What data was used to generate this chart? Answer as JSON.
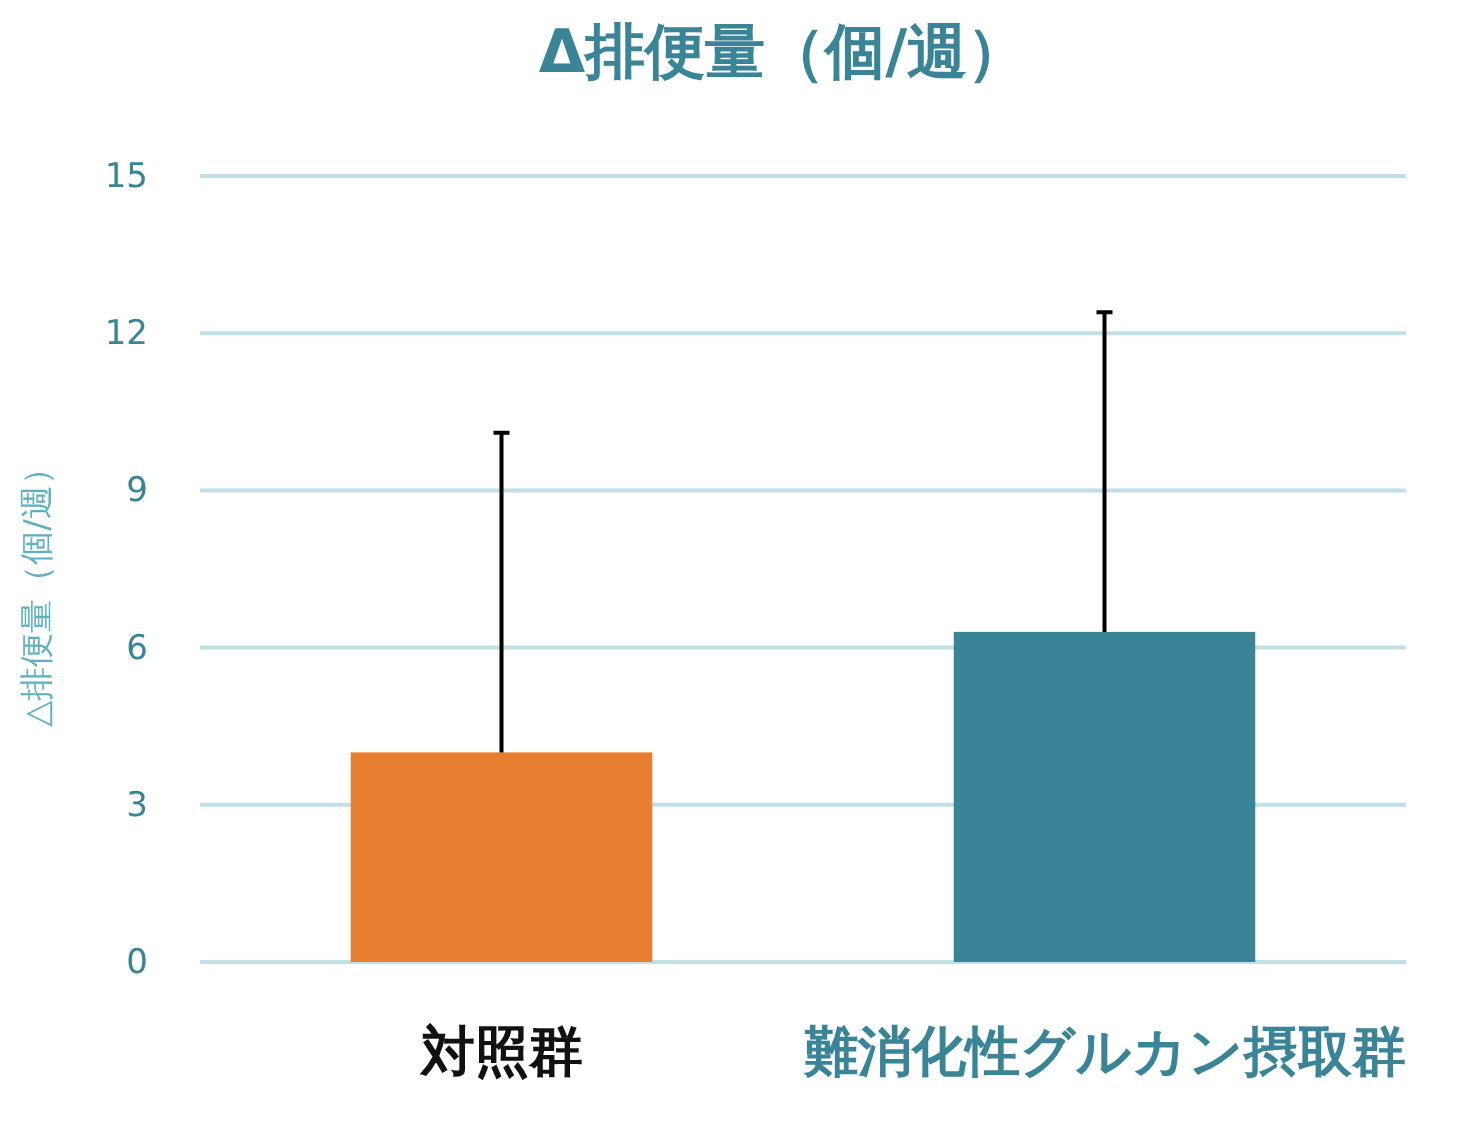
{
  "chart_data": {
    "type": "bar",
    "title": "Δ排便量（個/週）",
    "ylabel": "△排便量（個/週）",
    "categories": [
      "対照群",
      "難消化性グルカン摂取群"
    ],
    "values": [
      4.0,
      6.3
    ],
    "colors": [
      "#e87e2f",
      "#3a8497"
    ],
    "errors": [
      [
        4.0,
        10.1
      ],
      [
        6.3,
        12.4
      ]
    ],
    "ylim": [
      0,
      15
    ],
    "yticks": [
      0,
      3,
      6,
      9,
      12,
      15
    ],
    "grid": "y"
  }
}
